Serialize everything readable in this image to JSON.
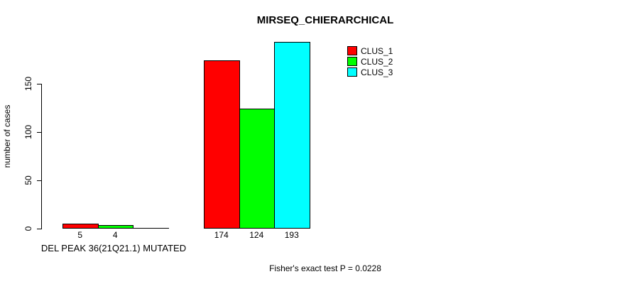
{
  "chart_data": {
    "type": "bar",
    "title": "MIRSEQ_CHIERARCHICAL",
    "ylabel": "number of cases",
    "xlabel": "DEL PEAK 36(21Q21.1) MUTATED",
    "footnote": "Fisher's exact test P = 0.0228",
    "ylim": [
      0,
      200
    ],
    "yticks": [
      0,
      50,
      100,
      150
    ],
    "grid": false,
    "legend_position": "top-right",
    "categories": [
      "MUTATED",
      ""
    ],
    "series": [
      {
        "name": "CLUS_1",
        "color": "#ff0000",
        "values": [
          5,
          174
        ]
      },
      {
        "name": "CLUS_2",
        "color": "#00ff00",
        "values": [
          4,
          124
        ]
      },
      {
        "name": "CLUS_3",
        "color": "#00ffff",
        "values": [
          0,
          193
        ]
      }
    ],
    "bar_value_labels": [
      [
        "5",
        "174"
      ],
      [
        "4",
        "124"
      ],
      [
        "",
        "193"
      ]
    ]
  }
}
